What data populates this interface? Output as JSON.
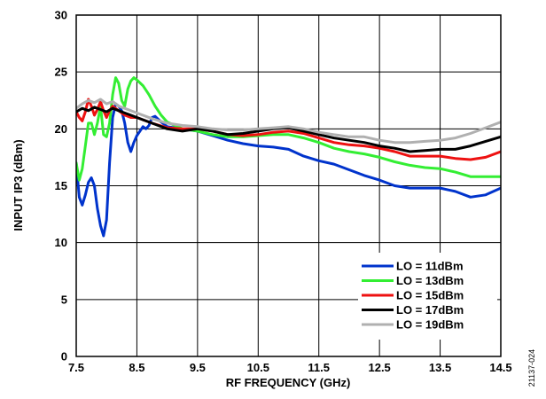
{
  "figure_id": "21137-024",
  "chart_data": {
    "type": "line",
    "title": "",
    "xlabel": "RF FREQUENCY (GHz)",
    "ylabel": "INPUT IP3 (dBm)",
    "xlim": [
      7.5,
      14.5
    ],
    "ylim": [
      0,
      30
    ],
    "xticks": [
      "7.5",
      "8.5",
      "9.5",
      "10.5",
      "11.5",
      "12.5",
      "13.5",
      "14.5"
    ],
    "xtick_values": [
      7.5,
      8.5,
      9.5,
      10.5,
      11.5,
      12.5,
      13.5,
      14.5
    ],
    "yticks": [
      "0",
      "5",
      "10",
      "15",
      "20",
      "25",
      "30"
    ],
    "ytick_values": [
      0,
      5,
      10,
      15,
      20,
      25,
      30
    ],
    "grid": true,
    "legend_position": "bottom-right",
    "series": [
      {
        "name": "LO = 11dBm",
        "color": "#0033cc",
        "points": [
          [
            7.5,
            17.0
          ],
          [
            7.55,
            14.0
          ],
          [
            7.6,
            13.3
          ],
          [
            7.65,
            14.2
          ],
          [
            7.7,
            15.3
          ],
          [
            7.75,
            15.7
          ],
          [
            7.8,
            15.0
          ],
          [
            7.85,
            13.0
          ],
          [
            7.9,
            11.5
          ],
          [
            7.95,
            10.6
          ],
          [
            8.0,
            12.0
          ],
          [
            8.05,
            17.0
          ],
          [
            8.1,
            21.0
          ],
          [
            8.15,
            22.2
          ],
          [
            8.2,
            22.0
          ],
          [
            8.25,
            21.6
          ],
          [
            8.3,
            20.5
          ],
          [
            8.35,
            18.8
          ],
          [
            8.4,
            18.0
          ],
          [
            8.45,
            18.8
          ],
          [
            8.5,
            19.4
          ],
          [
            8.55,
            19.8
          ],
          [
            8.6,
            20.2
          ],
          [
            8.65,
            20.0
          ],
          [
            8.7,
            20.3
          ],
          [
            8.75,
            21.0
          ],
          [
            8.8,
            21.1
          ],
          [
            8.9,
            20.6
          ],
          [
            9.0,
            20.2
          ],
          [
            9.25,
            20.0
          ],
          [
            9.5,
            19.8
          ],
          [
            9.75,
            19.4
          ],
          [
            10.0,
            19.0
          ],
          [
            10.25,
            18.7
          ],
          [
            10.5,
            18.5
          ],
          [
            10.75,
            18.4
          ],
          [
            11.0,
            18.2
          ],
          [
            11.25,
            17.6
          ],
          [
            11.5,
            17.2
          ],
          [
            11.75,
            16.9
          ],
          [
            12.0,
            16.4
          ],
          [
            12.25,
            15.9
          ],
          [
            12.5,
            15.5
          ],
          [
            12.75,
            15.0
          ],
          [
            13.0,
            14.8
          ],
          [
            13.25,
            14.8
          ],
          [
            13.5,
            14.8
          ],
          [
            13.75,
            14.5
          ],
          [
            14.0,
            14.0
          ],
          [
            14.25,
            14.2
          ],
          [
            14.5,
            14.8
          ],
          [
            14.6,
            15.1
          ]
        ]
      },
      {
        "name": "LO = 13dBm",
        "color": "#33ee33",
        "points": [
          [
            7.5,
            17.0
          ],
          [
            7.55,
            15.5
          ],
          [
            7.6,
            16.5
          ],
          [
            7.65,
            18.5
          ],
          [
            7.7,
            20.5
          ],
          [
            7.75,
            20.5
          ],
          [
            7.8,
            19.5
          ],
          [
            7.85,
            20.5
          ],
          [
            7.9,
            22.0
          ],
          [
            7.95,
            19.5
          ],
          [
            8.0,
            19.3
          ],
          [
            8.05,
            20.5
          ],
          [
            8.1,
            23.0
          ],
          [
            8.15,
            24.5
          ],
          [
            8.2,
            24.0
          ],
          [
            8.25,
            22.5
          ],
          [
            8.3,
            22.0
          ],
          [
            8.35,
            23.5
          ],
          [
            8.4,
            24.2
          ],
          [
            8.45,
            24.5
          ],
          [
            8.5,
            24.3
          ],
          [
            8.6,
            23.8
          ],
          [
            8.7,
            23.0
          ],
          [
            8.8,
            22.0
          ],
          [
            8.9,
            21.2
          ],
          [
            9.0,
            20.6
          ],
          [
            9.25,
            20.0
          ],
          [
            9.5,
            19.8
          ],
          [
            9.75,
            19.5
          ],
          [
            10.0,
            19.3
          ],
          [
            10.25,
            19.3
          ],
          [
            10.5,
            19.4
          ],
          [
            10.75,
            19.5
          ],
          [
            11.0,
            19.5
          ],
          [
            11.25,
            19.2
          ],
          [
            11.5,
            18.8
          ],
          [
            11.75,
            18.3
          ],
          [
            12.0,
            18.0
          ],
          [
            12.25,
            17.8
          ],
          [
            12.5,
            17.5
          ],
          [
            12.75,
            17.1
          ],
          [
            13.0,
            16.8
          ],
          [
            13.25,
            16.6
          ],
          [
            13.5,
            16.5
          ],
          [
            13.75,
            16.2
          ],
          [
            14.0,
            15.8
          ],
          [
            14.25,
            15.8
          ],
          [
            14.5,
            15.8
          ],
          [
            14.6,
            16.0
          ]
        ]
      },
      {
        "name": "LO = 15dBm",
        "color": "#ee1111",
        "points": [
          [
            7.5,
            21.5
          ],
          [
            7.55,
            21.0
          ],
          [
            7.6,
            20.7
          ],
          [
            7.65,
            21.5
          ],
          [
            7.7,
            22.6
          ],
          [
            7.75,
            22.0
          ],
          [
            7.8,
            21.2
          ],
          [
            7.85,
            21.7
          ],
          [
            7.9,
            22.4
          ],
          [
            7.95,
            21.6
          ],
          [
            8.0,
            21.0
          ],
          [
            8.05,
            21.6
          ],
          [
            8.1,
            22.0
          ],
          [
            8.2,
            21.6
          ],
          [
            8.3,
            21.2
          ],
          [
            8.4,
            21.0
          ],
          [
            8.5,
            21.0
          ],
          [
            8.6,
            20.8
          ],
          [
            8.75,
            20.5
          ],
          [
            9.0,
            20.1
          ],
          [
            9.25,
            20.0
          ],
          [
            9.5,
            20.0
          ],
          [
            9.75,
            19.8
          ],
          [
            10.0,
            19.5
          ],
          [
            10.25,
            19.4
          ],
          [
            10.5,
            19.5
          ],
          [
            10.75,
            19.7
          ],
          [
            11.0,
            19.8
          ],
          [
            11.25,
            19.6
          ],
          [
            11.5,
            19.2
          ],
          [
            11.75,
            18.8
          ],
          [
            12.0,
            18.6
          ],
          [
            12.25,
            18.5
          ],
          [
            12.5,
            18.3
          ],
          [
            12.75,
            18.0
          ],
          [
            13.0,
            17.6
          ],
          [
            13.25,
            17.6
          ],
          [
            13.5,
            17.6
          ],
          [
            13.75,
            17.4
          ],
          [
            14.0,
            17.3
          ],
          [
            14.25,
            17.5
          ],
          [
            14.5,
            18.0
          ],
          [
            14.6,
            18.4
          ]
        ]
      },
      {
        "name": "LO = 17dBm",
        "color": "#000000",
        "points": [
          [
            7.5,
            21.5
          ],
          [
            7.6,
            21.8
          ],
          [
            7.7,
            21.6
          ],
          [
            7.8,
            21.9
          ],
          [
            7.9,
            21.7
          ],
          [
            8.0,
            21.5
          ],
          [
            8.1,
            21.8
          ],
          [
            8.2,
            21.6
          ],
          [
            8.3,
            21.4
          ],
          [
            8.4,
            21.2
          ],
          [
            8.5,
            21.0
          ],
          [
            8.75,
            20.5
          ],
          [
            9.0,
            20.0
          ],
          [
            9.25,
            19.8
          ],
          [
            9.5,
            20.0
          ],
          [
            9.75,
            19.8
          ],
          [
            10.0,
            19.5
          ],
          [
            10.25,
            19.6
          ],
          [
            10.5,
            19.8
          ],
          [
            10.75,
            20.0
          ],
          [
            11.0,
            20.1
          ],
          [
            11.25,
            19.8
          ],
          [
            11.5,
            19.5
          ],
          [
            11.75,
            19.2
          ],
          [
            12.0,
            19.0
          ],
          [
            12.25,
            18.8
          ],
          [
            12.5,
            18.5
          ],
          [
            12.75,
            18.3
          ],
          [
            13.0,
            18.0
          ],
          [
            13.25,
            18.1
          ],
          [
            13.5,
            18.2
          ],
          [
            13.75,
            18.2
          ],
          [
            14.0,
            18.5
          ],
          [
            14.25,
            18.9
          ],
          [
            14.5,
            19.3
          ],
          [
            14.6,
            20.0
          ]
        ]
      },
      {
        "name": "LO = 19dBm",
        "color": "#b0b0b0",
        "points": [
          [
            7.5,
            21.8
          ],
          [
            7.6,
            22.2
          ],
          [
            7.7,
            22.5
          ],
          [
            7.8,
            22.3
          ],
          [
            7.9,
            22.6
          ],
          [
            8.0,
            22.2
          ],
          [
            8.1,
            22.4
          ],
          [
            8.2,
            22.0
          ],
          [
            8.3,
            21.8
          ],
          [
            8.5,
            21.4
          ],
          [
            8.75,
            20.9
          ],
          [
            9.0,
            20.5
          ],
          [
            9.25,
            20.3
          ],
          [
            9.5,
            20.2
          ],
          [
            9.75,
            20.0
          ],
          [
            10.0,
            19.9
          ],
          [
            10.25,
            19.9
          ],
          [
            10.5,
            20.0
          ],
          [
            10.75,
            20.1
          ],
          [
            11.0,
            20.2
          ],
          [
            11.25,
            20.0
          ],
          [
            11.5,
            19.7
          ],
          [
            11.75,
            19.5
          ],
          [
            12.0,
            19.3
          ],
          [
            12.25,
            19.3
          ],
          [
            12.5,
            19.0
          ],
          [
            12.75,
            18.8
          ],
          [
            13.0,
            18.8
          ],
          [
            13.25,
            18.9
          ],
          [
            13.5,
            19.0
          ],
          [
            13.75,
            19.2
          ],
          [
            14.0,
            19.6
          ],
          [
            14.25,
            20.1
          ],
          [
            14.5,
            20.6
          ],
          [
            14.6,
            21.2
          ]
        ]
      }
    ]
  }
}
